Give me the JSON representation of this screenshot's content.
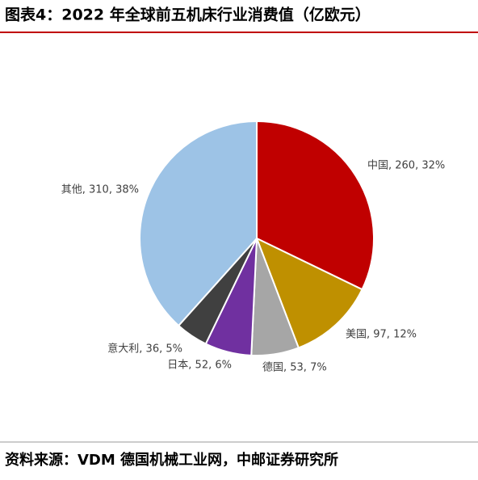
{
  "chart_data": {
    "type": "pie",
    "title": "图表4：2022 年全球前五机床行业消费值（亿欧元）",
    "categories": [
      "中国",
      "美国",
      "德国",
      "日本",
      "意大利",
      "其他"
    ],
    "values": [
      260,
      97,
      53,
      52,
      36,
      310
    ],
    "value_labels": [
      "中国, 260, 32%",
      "美国, 97, 12%",
      "德国, 53, 7%",
      "日本, 52, 6%",
      "意大利, 36, 5%",
      "其他, 310, 38%"
    ],
    "colors": [
      "#c00000",
      "#bf9000",
      "#a6a6a6",
      "#7030a0",
      "#404040",
      "#9dc3e6"
    ]
  },
  "source": "资料来源：VDM 德国机械工业网，中邮证券研究所"
}
